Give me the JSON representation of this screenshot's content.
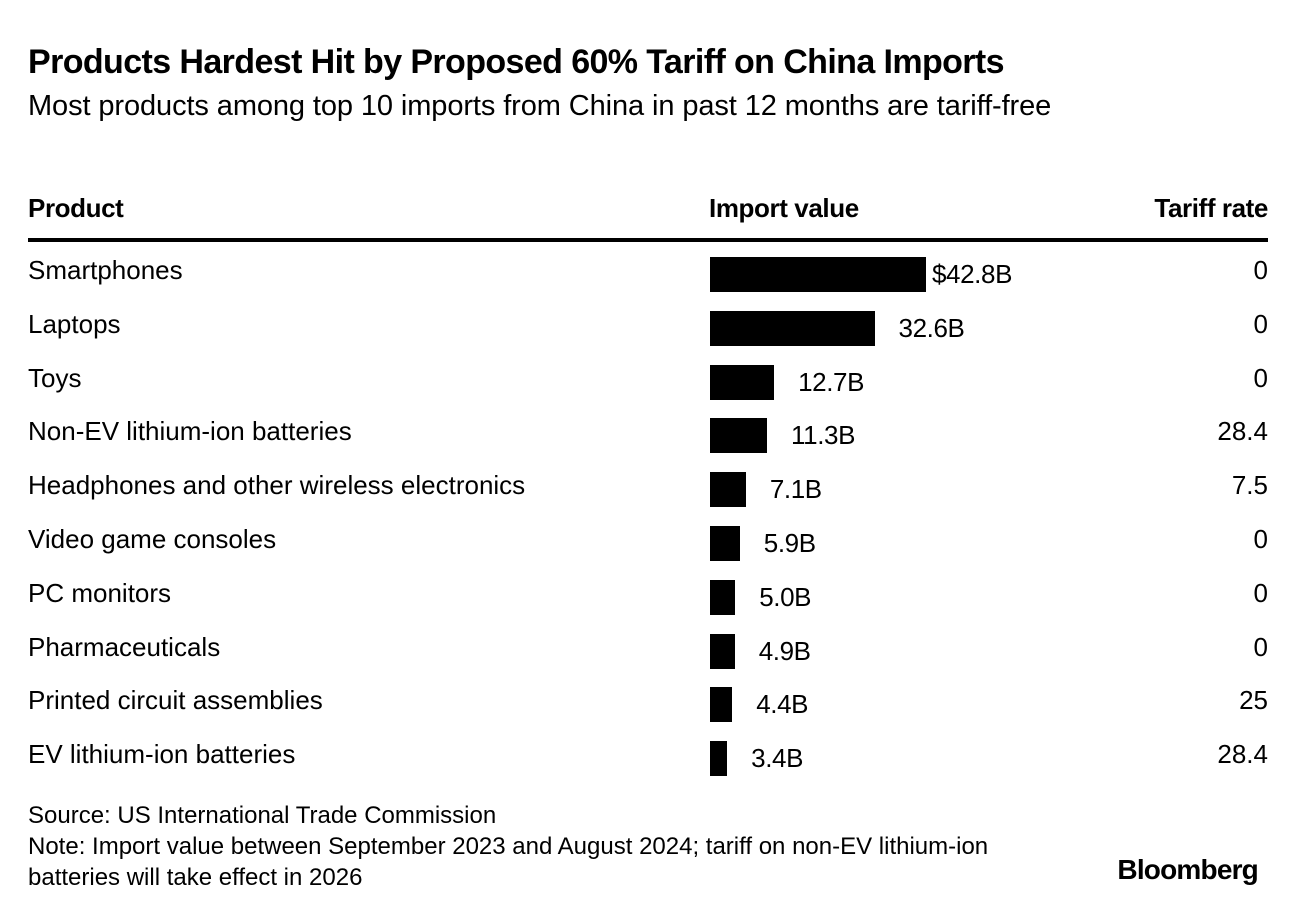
{
  "title": "Products Hardest Hit by Proposed 60% Tariff on China Imports",
  "subtitle": "Most products among top 10 imports from China in past 12 months are tariff-free",
  "columns": {
    "product": "Product",
    "import_value": "Import value",
    "tariff_rate": "Tariff rate"
  },
  "chart_data": {
    "type": "bar",
    "orientation": "horizontal",
    "title": "Products Hardest Hit by Proposed 60% Tariff on China Imports",
    "subtitle": "Most products among top 10 imports from China in past 12 months are tariff-free",
    "categories": [
      "Smartphones",
      "Laptops",
      "Toys",
      "Non-EV lithium-ion batteries",
      "Headphones and other wireless electronics",
      "Video game consoles",
      "PC monitors",
      "Pharmaceuticals",
      "Printed circuit assemblies",
      "EV lithium-ion batteries"
    ],
    "series": [
      {
        "name": "Import value",
        "values": [
          42.8,
          32.6,
          12.7,
          11.3,
          7.1,
          5.9,
          5.0,
          4.9,
          4.4,
          3.4
        ],
        "labels": [
          "$42.8B",
          "32.6B",
          "12.7B",
          "11.3B",
          "7.1B",
          "5.9B",
          "5.0B",
          "4.9B",
          "4.4B",
          "3.4B"
        ]
      },
      {
        "name": "Tariff rate",
        "values": [
          0,
          0,
          0,
          28.4,
          7.5,
          0,
          0,
          0,
          25,
          28.4
        ],
        "labels": [
          "0",
          "0",
          "0",
          "28.4",
          "7.5",
          "0",
          "0",
          "0",
          "25",
          "28.4"
        ]
      }
    ],
    "grid": false,
    "bar_color": "#000000"
  },
  "footer": {
    "source": "Source: US International Trade Commission",
    "note": "Note: Import value between September 2023 and August 2024; tariff on non-EV lithium-ion batteries will take effect in 2026",
    "brand": "Bloomberg"
  },
  "colors": {
    "text": "#000000",
    "background": "#ffffff",
    "bar": "#000000"
  }
}
